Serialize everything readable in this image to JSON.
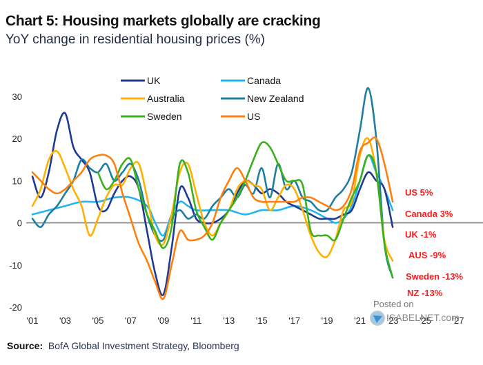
{
  "header": {
    "title": "Chart 5: Housing markets globally are cracking",
    "subtitle": "YoY change in residential housing prices (%)"
  },
  "footer": {
    "source_label": "Source:",
    "source_text": "BofA Global Investment Strategy, Bloomberg"
  },
  "watermark": {
    "line1": "Posted on",
    "line2": "ISABELNET.com"
  },
  "chart_data": {
    "type": "line",
    "title": "Chart 5: Housing markets globally are cracking",
    "subtitle": "YoY change in residential housing prices (%)",
    "xlabel": "",
    "ylabel": "",
    "xlim": [
      2001,
      2027
    ],
    "ylim": [
      -20,
      30
    ],
    "x_ticks": [
      2001,
      2003,
      2005,
      2007,
      2009,
      2011,
      2013,
      2015,
      2017,
      2019,
      2021,
      2023,
      2025,
      2027
    ],
    "x_tick_labels": [
      "'01",
      "'03",
      "'05",
      "'07",
      "'09",
      "'11",
      "'13",
      "'15",
      "'17",
      "'19",
      "'21",
      "'23",
      "'25",
      "'27"
    ],
    "y_ticks": [
      30,
      20,
      10,
      0,
      -10,
      -20
    ],
    "y_tick_labels": [
      "30",
      "20",
      "10",
      "0",
      "-10",
      "-20"
    ],
    "zero_line": true,
    "grid": false,
    "legend_position": "top-center",
    "series": [
      {
        "name": "UK",
        "color": "#1f3a93",
        "x": [
          2001,
          2001.5,
          2002,
          2002.5,
          2003,
          2003.5,
          2004,
          2004.5,
          2005,
          2005.5,
          2006,
          2006.5,
          2007,
          2007.5,
          2008,
          2008.5,
          2009,
          2009.5,
          2010,
          2010.5,
          2011,
          2011.5,
          2012,
          2012.5,
          2013,
          2013.5,
          2014,
          2014.5,
          2015,
          2015.5,
          2016,
          2016.5,
          2017,
          2017.5,
          2018,
          2018.5,
          2019,
          2019.5,
          2020,
          2020.5,
          2021,
          2021.5,
          2022,
          2022.5,
          2023
        ],
        "values": [
          11,
          6,
          12,
          22,
          26,
          18,
          15,
          12,
          4,
          3,
          7,
          10,
          11,
          8,
          -2,
          -12,
          -17,
          -6,
          8,
          6,
          1,
          0,
          0,
          1,
          3,
          7,
          10,
          9,
          7,
          8,
          7,
          5,
          4,
          3,
          2,
          1,
          1,
          1,
          2,
          3,
          8,
          12,
          10,
          8,
          -1
        ]
      },
      {
        "name": "Canada",
        "color": "#22b4f0",
        "x": [
          2001,
          2002,
          2003,
          2004,
          2005,
          2006,
          2007,
          2008,
          2008.5,
          2009,
          2009.5,
          2010,
          2010.5,
          2011,
          2012,
          2013,
          2014,
          2015,
          2016,
          2017,
          2018,
          2019,
          2019.5,
          2020,
          2020.5,
          2021,
          2021.5,
          2022,
          2022.5,
          2023
        ],
        "values": [
          2,
          3,
          4,
          5,
          5,
          6,
          6,
          4,
          0,
          -3,
          2,
          5,
          4,
          3,
          3,
          3,
          2,
          3,
          3,
          4,
          3,
          1,
          0,
          1,
          4,
          10,
          16,
          12,
          8,
          3
        ]
      },
      {
        "name": "Australia",
        "color": "#ffb000",
        "x": [
          2001,
          2001.5,
          2002,
          2002.5,
          2003,
          2003.5,
          2004,
          2004.5,
          2005,
          2005.5,
          2006,
          2006.5,
          2007,
          2007.5,
          2008,
          2008.5,
          2009,
          2009.5,
          2010,
          2010.5,
          2011,
          2011.5,
          2012,
          2012.5,
          2013,
          2013.5,
          2014,
          2014.5,
          2015,
          2015.5,
          2016,
          2016.5,
          2017,
          2017.5,
          2018,
          2018.5,
          2019,
          2019.5,
          2020,
          2020.5,
          2021,
          2021.5,
          2022,
          2022.5,
          2023
        ],
        "values": [
          4,
          8,
          15,
          17,
          13,
          8,
          4,
          -3,
          1,
          6,
          9,
          9,
          13,
          14,
          6,
          -3,
          -5,
          2,
          12,
          14,
          7,
          0,
          -3,
          0,
          3,
          8,
          10,
          9,
          8,
          3,
          6,
          9,
          8,
          3,
          -3,
          -7,
          -8,
          -4,
          3,
          5,
          16,
          20,
          12,
          -4,
          -9
        ]
      },
      {
        "name": "New Zealand",
        "color": "#1f7ea0",
        "x": [
          2001,
          2001.5,
          2002,
          2002.5,
          2003,
          2003.5,
          2004,
          2004.5,
          2005,
          2005.5,
          2006,
          2006.5,
          2007,
          2007.5,
          2008,
          2008.5,
          2009,
          2009.5,
          2010,
          2010.5,
          2011,
          2011.5,
          2012,
          2012.5,
          2013,
          2013.5,
          2014,
          2014.5,
          2015,
          2015.5,
          2016,
          2016.5,
          2017,
          2017.5,
          2018,
          2018.5,
          2019,
          2019.5,
          2020,
          2020.5,
          2021,
          2021.5,
          2022,
          2022.5,
          2023
        ],
        "values": [
          1,
          -1,
          2,
          4,
          7,
          10,
          15,
          13,
          12,
          14,
          10,
          12,
          14,
          10,
          2,
          -3,
          -4,
          1,
          3,
          1,
          2,
          1,
          4,
          6,
          8,
          6,
          9,
          7,
          13,
          6,
          14,
          8,
          10,
          6,
          5,
          3,
          3,
          6,
          8,
          12,
          22,
          32,
          20,
          -5,
          -13
        ]
      },
      {
        "name": "Sweden",
        "color": "#3ab01c",
        "x": [
          2005,
          2005.5,
          2006,
          2006.5,
          2007,
          2007.5,
          2008,
          2008.5,
          2009,
          2009.5,
          2010,
          2010.5,
          2011,
          2011.5,
          2012,
          2012.5,
          2013,
          2013.5,
          2014,
          2014.5,
          2015,
          2015.5,
          2016,
          2016.5,
          2017,
          2017.5,
          2018,
          2018.5,
          2019,
          2019.5,
          2020,
          2020.5,
          2021,
          2021.5,
          2022,
          2022.5,
          2023
        ],
        "values": [
          12,
          8,
          10,
          14,
          15,
          8,
          2,
          -2,
          -6,
          -1,
          14,
          12,
          3,
          -1,
          -4,
          0,
          3,
          6,
          10,
          15,
          19,
          18,
          14,
          10,
          10,
          9,
          -2,
          -3,
          -3,
          -4,
          1,
          6,
          10,
          16,
          12,
          -5,
          -13
        ]
      },
      {
        "name": "US",
        "color": "#ff7f0e",
        "x": [
          2001,
          2001.5,
          2002,
          2002.5,
          2003,
          2003.5,
          2004,
          2004.5,
          2005,
          2005.5,
          2006,
          2006.5,
          2007,
          2007.5,
          2008,
          2008.5,
          2009,
          2009.5,
          2010,
          2010.5,
          2011,
          2011.5,
          2012,
          2012.5,
          2013,
          2013.5,
          2014,
          2014.5,
          2015,
          2015.5,
          2016,
          2016.5,
          2017,
          2017.5,
          2018,
          2018.5,
          2019,
          2019.5,
          2020,
          2020.5,
          2021,
          2021.5,
          2022,
          2022.5,
          2023
        ],
        "values": [
          12,
          10,
          8,
          7,
          8,
          10,
          12,
          15,
          16,
          16,
          14,
          7,
          1,
          -5,
          -9,
          -14,
          -18,
          -10,
          -2,
          -4,
          -4,
          -3,
          0,
          6,
          10,
          13,
          10,
          6,
          5,
          5,
          5,
          5,
          5,
          6,
          6,
          5,
          4,
          3,
          4,
          8,
          17,
          19,
          20,
          14,
          5
        ]
      }
    ],
    "annotations": [
      {
        "text": "US 5%",
        "series": "US"
      },
      {
        "text": "Canada 3%",
        "series": "Canada"
      },
      {
        "text": "UK -1%",
        "series": "UK"
      },
      {
        "text": "AUS -9%",
        "series": "Australia"
      },
      {
        "text": "Sweden -13%",
        "series": "Sweden"
      },
      {
        "text": "NZ -13%",
        "series": "New Zealand"
      }
    ]
  }
}
